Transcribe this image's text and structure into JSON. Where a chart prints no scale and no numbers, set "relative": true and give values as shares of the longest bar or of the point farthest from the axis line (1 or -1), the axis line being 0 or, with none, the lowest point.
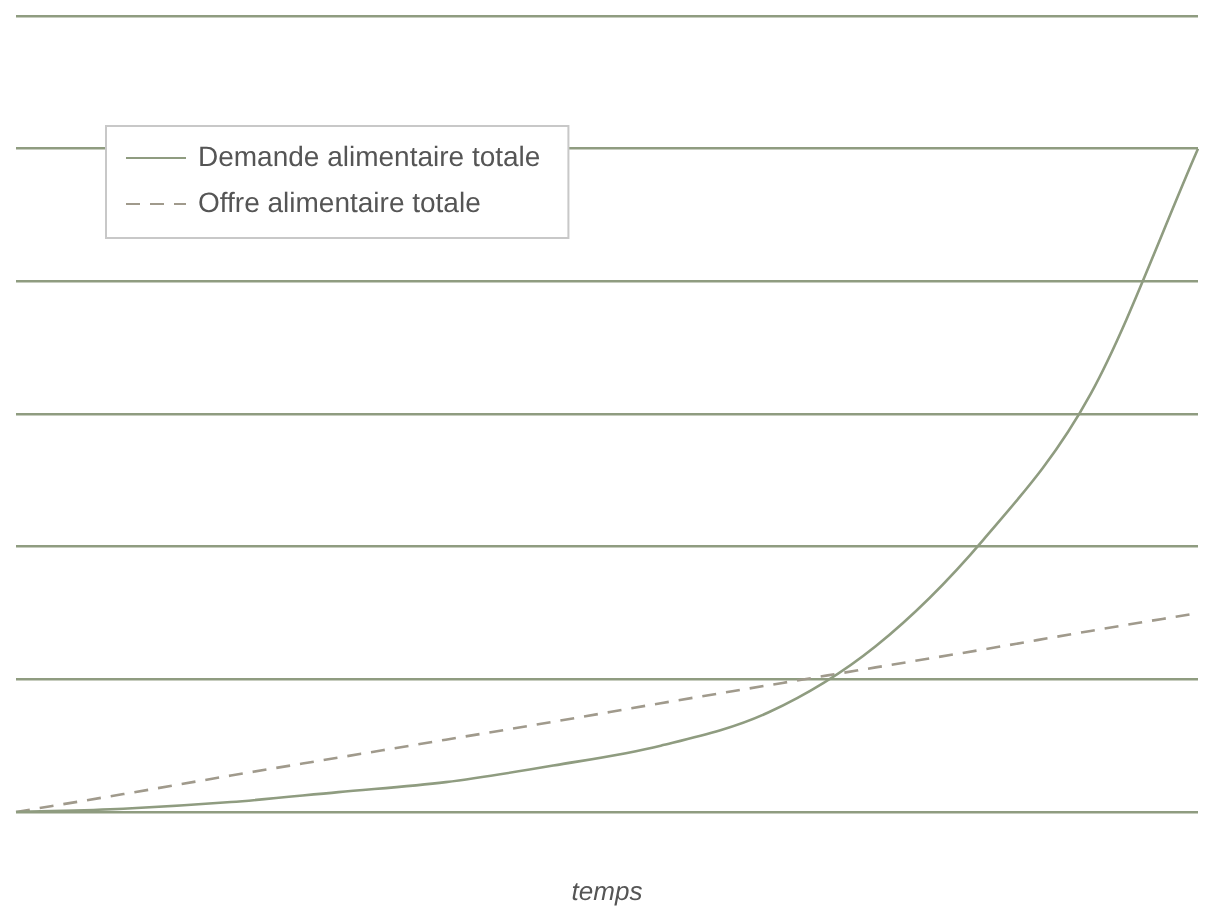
{
  "chart_data": {
    "type": "line",
    "relative": true,
    "xlabel": "temps",
    "categories": [
      null,
      null,
      null,
      null,
      null,
      null,
      null,
      null,
      null,
      null,
      null,
      null
    ],
    "series": [
      {
        "name": "Demande alimentaire totale",
        "color": "#8f9c80",
        "line_style": "solid",
        "values": [
          0,
          0.005,
          0.015,
          0.03,
          0.045,
          0.07,
          0.1,
          0.15,
          0.25,
          0.41,
          0.63,
          1
        ]
      },
      {
        "name": "Offre alimentaire totale",
        "color": "#a09a8c",
        "line_style": "dashed",
        "values": [
          0,
          0.027,
          0.055,
          0.082,
          0.109,
          0.136,
          0.164,
          0.191,
          0.218,
          0.245,
          0.273,
          0.3
        ]
      }
    ],
    "grid": "y",
    "legend": "top left",
    "marker": "none"
  }
}
